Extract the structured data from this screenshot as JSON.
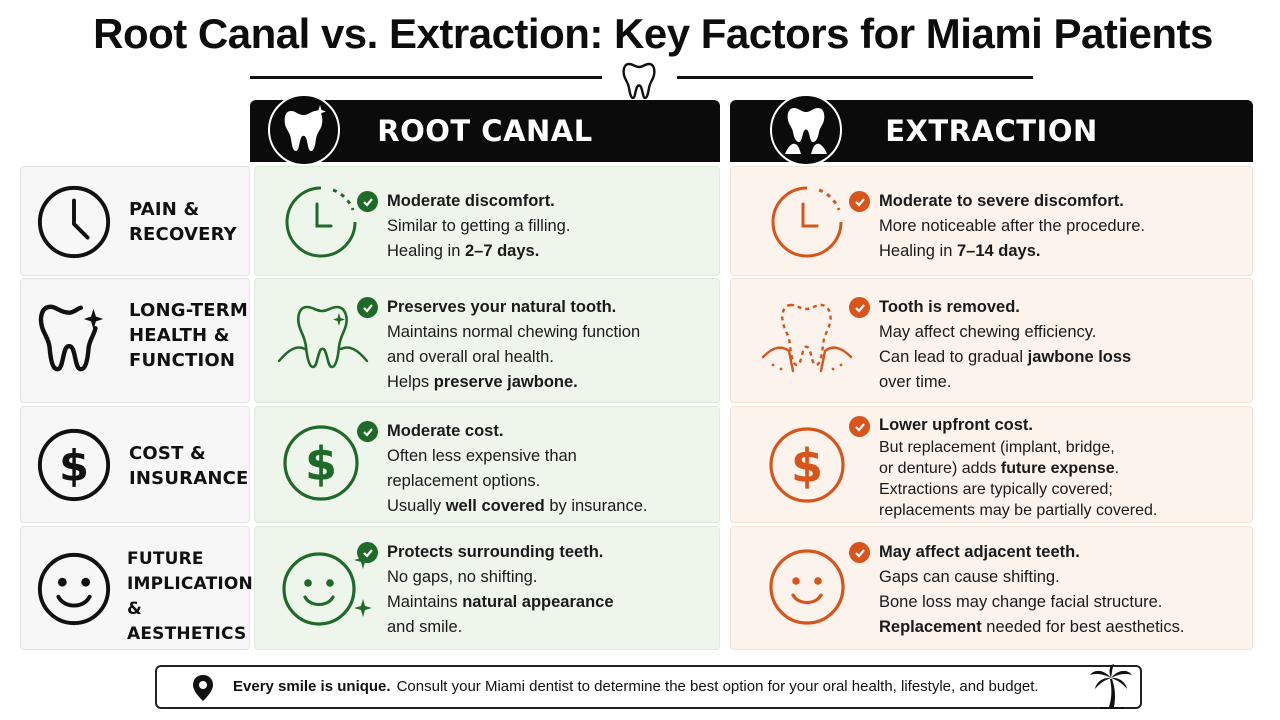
{
  "title": "Root Canal vs. Extraction: Key Factors for Miami Patients",
  "columns": {
    "root_canal": {
      "label": "ROOT CANAL",
      "icon": "tooth-sparkle-icon",
      "accent": "#1f6a28"
    },
    "extraction": {
      "label": "EXTRACTION",
      "icon": "extracted-tooth-icon",
      "accent": "#d9541a"
    }
  },
  "rows": [
    {
      "label_lines": [
        "PAIN &",
        "RECOVERY"
      ],
      "icon": "clock-icon",
      "root_canal": {
        "head": "Moderate discomfort.",
        "lines": [
          {
            "pre": "Similar to getting a filling.",
            "bold": "",
            "post": ""
          },
          {
            "pre": "Healing in ",
            "bold": "2–7 days.",
            "post": ""
          }
        ]
      },
      "extraction": {
        "head": "Moderate to severe discomfort.",
        "lines": [
          {
            "pre": "More noticeable after the procedure.",
            "bold": "",
            "post": ""
          },
          {
            "pre": "Healing in ",
            "bold": "7–14 days.",
            "post": ""
          }
        ]
      }
    },
    {
      "label_lines": [
        "LONG-TERM",
        "HEALTH &",
        "FUNCTION"
      ],
      "icon": "tooth-icon",
      "root_canal": {
        "head": "Preserves your natural tooth.",
        "lines": [
          {
            "pre": "Maintains normal chewing function",
            "bold": "",
            "post": ""
          },
          {
            "pre": "and overall oral health.",
            "bold": "",
            "post": ""
          },
          {
            "pre": "Helps ",
            "bold": "preserve jawbone.",
            "post": ""
          }
        ]
      },
      "extraction": {
        "head": "Tooth is removed.",
        "lines": [
          {
            "pre": "May affect chewing efficiency.",
            "bold": "",
            "post": ""
          },
          {
            "pre": "Can lead to gradual ",
            "bold": "jawbone loss",
            "post": ""
          },
          {
            "pre": "over time.",
            "bold": "",
            "post": ""
          }
        ]
      }
    },
    {
      "label_lines": [
        "COST &",
        "INSURANCE"
      ],
      "icon": "dollar-icon",
      "root_canal": {
        "head": "Moderate cost.",
        "lines": [
          {
            "pre": "Often less expensive than",
            "bold": "",
            "post": ""
          },
          {
            "pre": "replacement options.",
            "bold": "",
            "post": ""
          },
          {
            "pre": "Usually ",
            "bold": "well covered",
            "post": " by insurance."
          }
        ]
      },
      "extraction": {
        "head": "Lower upfront cost.",
        "lines": [
          {
            "pre": "But replacement (implant, bridge,",
            "bold": "",
            "post": ""
          },
          {
            "pre": "or denture) adds ",
            "bold": "future expense",
            "post": "."
          },
          {
            "pre": "Extractions are typically covered;",
            "bold": "",
            "post": ""
          },
          {
            "pre": "replacements may be partially covered.",
            "bold": "",
            "post": ""
          }
        ]
      }
    },
    {
      "label_lines": [
        "FUTURE",
        "IMPLICATIONS &",
        "AESTHETICS"
      ],
      "icon": "smiley-icon",
      "root_canal": {
        "head": "Protects surrounding teeth.",
        "lines": [
          {
            "pre": "No gaps, no shifting.",
            "bold": "",
            "post": ""
          },
          {
            "pre": "Maintains ",
            "bold": "natural appearance",
            "post": ""
          },
          {
            "pre": "and smile.",
            "bold": "",
            "post": ""
          }
        ]
      },
      "extraction": {
        "head": "May affect adjacent teeth.",
        "lines": [
          {
            "pre": "Gaps can cause shifting.",
            "bold": "",
            "post": ""
          },
          {
            "pre": "Bone loss may change facial structure.",
            "bold": "",
            "post": ""
          },
          {
            "pre": "",
            "bold": "Replacement",
            "post": " needed for best aesthetics."
          }
        ]
      }
    }
  ],
  "footer": {
    "bold": "Every smile is unique.",
    "text": "Consult your Miami dentist to determine the best option for your oral health, lifestyle, and budget.",
    "icon_left": "location-pin-icon",
    "icon_right": "palm-tree-icon"
  }
}
